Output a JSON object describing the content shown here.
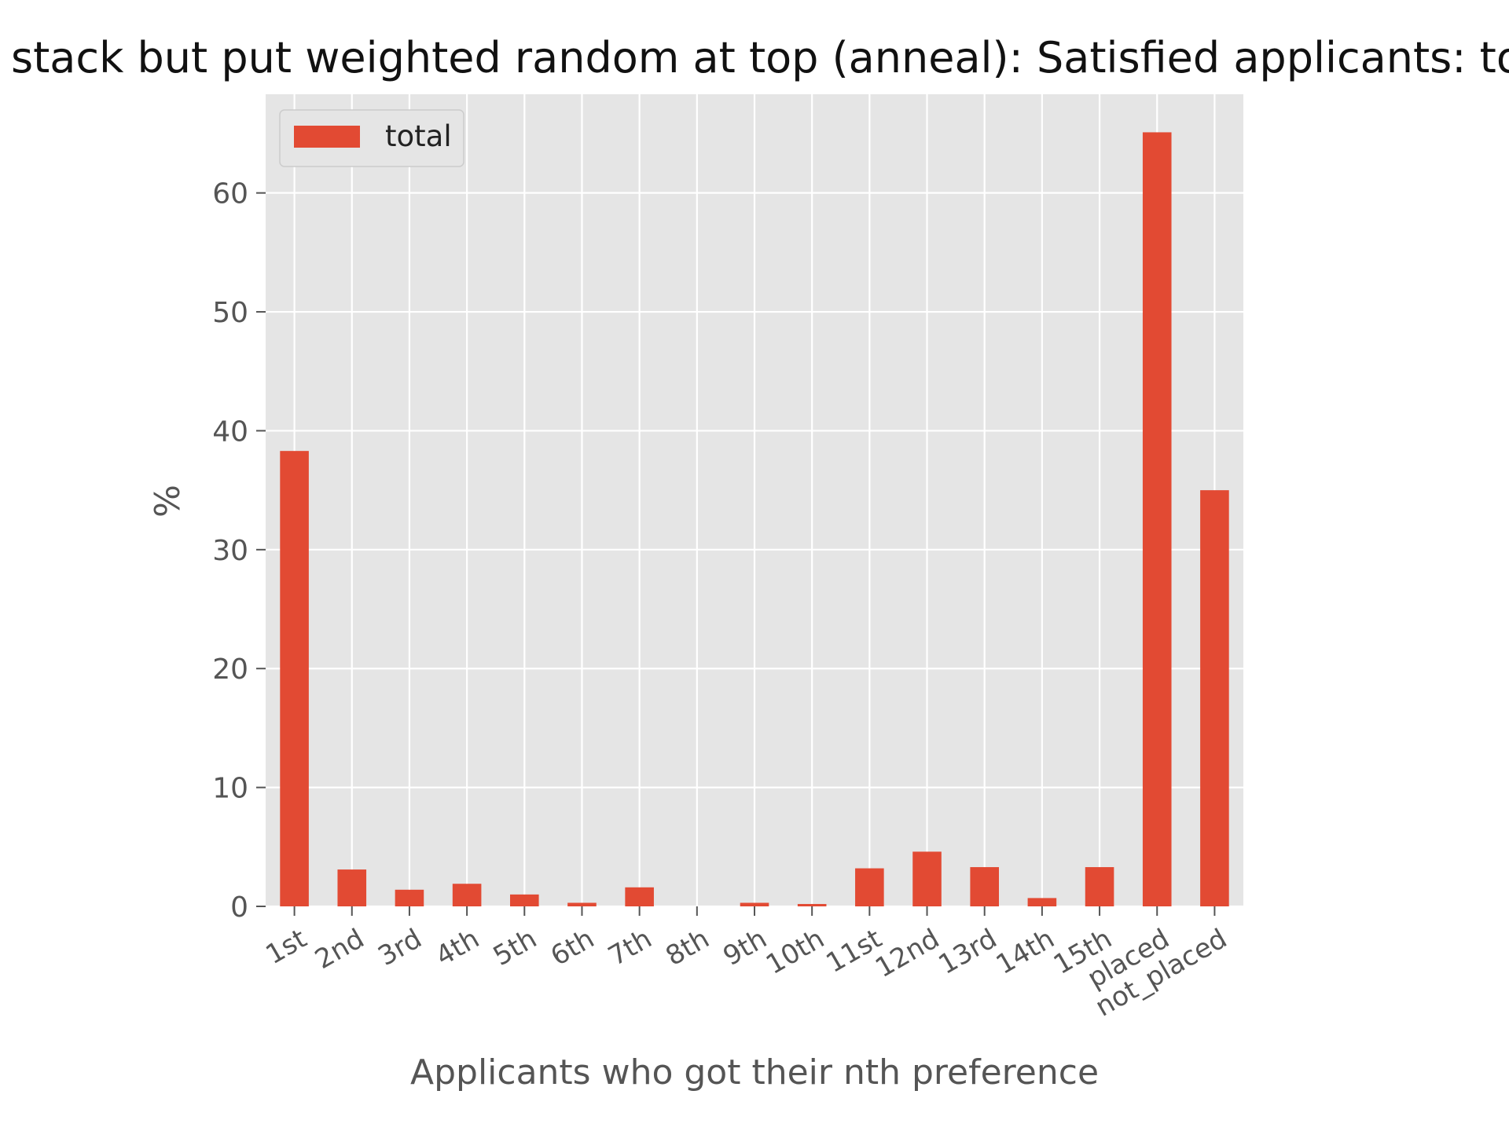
{
  "chart_data": {
    "type": "bar",
    "title": "stack but put weighted random at top (anneal): Satisfied applicants: to",
    "xlabel": "Applicants who got their nth preference",
    "ylabel": "%",
    "categories": [
      "1st",
      "2nd",
      "3rd",
      "4th",
      "5th",
      "6th",
      "7th",
      "8th",
      "9th",
      "10th",
      "11st",
      "12nd",
      "13rd",
      "14th",
      "15th",
      "placed",
      "not_placed"
    ],
    "series": [
      {
        "name": "total",
        "values": [
          38.3,
          3.1,
          1.4,
          1.9,
          1.0,
          0.3,
          1.6,
          0.0,
          0.3,
          0.2,
          3.2,
          4.6,
          3.3,
          0.7,
          3.3,
          65.1,
          35.0
        ]
      }
    ],
    "ylim": [
      0,
      68.3
    ],
    "yticks": [
      0,
      10,
      20,
      30,
      40,
      50,
      60
    ],
    "grid": true,
    "legend": "top-left",
    "colors": {
      "bar": "#e24a33",
      "plot_bg": "#e5e5e5",
      "grid": "#ffffff"
    }
  }
}
